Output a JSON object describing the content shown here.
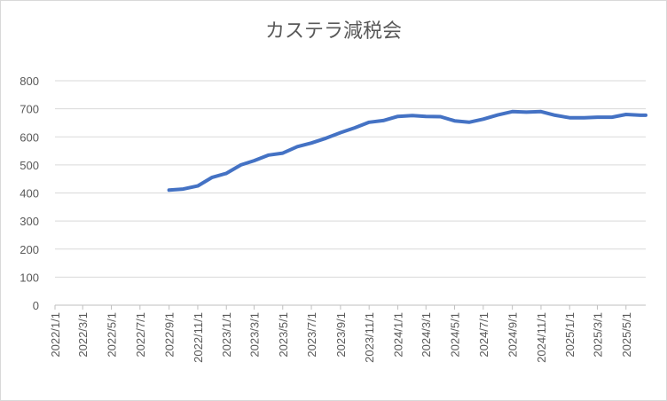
{
  "chart_data": {
    "type": "line",
    "title": "カステラ減税会",
    "x": [
      "2022/9/1",
      "2022/10/1",
      "2022/11/1",
      "2022/12/1",
      "2023/1/1",
      "2023/2/1",
      "2023/3/1",
      "2023/4/1",
      "2023/5/1",
      "2023/6/1",
      "2023/7/1",
      "2023/8/1",
      "2023/9/1",
      "2023/10/1",
      "2023/11/1",
      "2023/12/1",
      "2024/1/1",
      "2024/2/1",
      "2024/3/1",
      "2024/4/1",
      "2024/5/1",
      "2024/6/1",
      "2024/7/1",
      "2024/8/1",
      "2024/9/1",
      "2024/10/1",
      "2024/11/1",
      "2024/12/1",
      "2025/1/1",
      "2025/2/1",
      "2025/3/1",
      "2025/4/1",
      "2025/5/1",
      "2025/6/1",
      "2025/6/12"
    ],
    "values": [
      410,
      414,
      425,
      455,
      470,
      500,
      515,
      535,
      542,
      565,
      578,
      595,
      615,
      632,
      652,
      658,
      673,
      676,
      673,
      672,
      657,
      652,
      663,
      678,
      690,
      688,
      690,
      677,
      668,
      668,
      670,
      670,
      680,
      677,
      677
    ],
    "color": "#4472c4",
    "xlim": [
      "2022/1/1",
      "2025/6/12"
    ],
    "xticks": [
      "2022/1/1",
      "2022/3/1",
      "2022/5/1",
      "2022/7/1",
      "2022/9/1",
      "2022/11/1",
      "2023/1/1",
      "2023/3/1",
      "2023/5/1",
      "2023/7/1",
      "2023/9/1",
      "2023/11/1",
      "2024/1/1",
      "2024/3/1",
      "2024/5/1",
      "2024/7/1",
      "2024/9/1",
      "2024/11/1",
      "2025/1/1",
      "2025/3/1",
      "2025/5/1"
    ],
    "ylim": [
      0,
      800
    ],
    "yticks": [
      0,
      100,
      200,
      300,
      400,
      500,
      600,
      700,
      800
    ],
    "grid": true
  }
}
